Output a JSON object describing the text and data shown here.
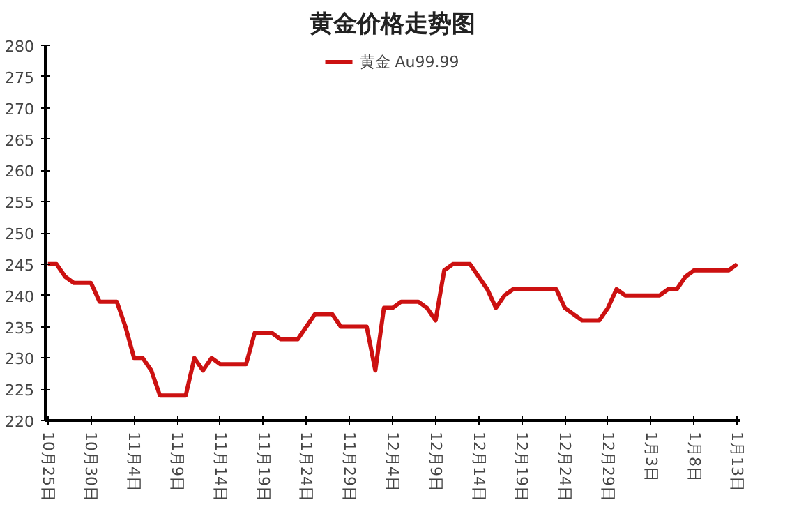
{
  "chart_data": {
    "type": "line",
    "title": "黄金价格走势图",
    "categories": [
      "10月25日",
      null,
      null,
      null,
      null,
      "10月30日",
      null,
      null,
      null,
      null,
      "11月4日",
      null,
      null,
      null,
      null,
      "11月9日",
      null,
      null,
      null,
      null,
      "11月14日",
      null,
      null,
      null,
      null,
      "11月19日",
      null,
      null,
      null,
      null,
      "11月24日",
      null,
      null,
      null,
      null,
      "11月29日",
      null,
      null,
      null,
      null,
      "12月4日",
      null,
      null,
      null,
      null,
      "12月9日",
      null,
      null,
      null,
      null,
      "12月14日",
      null,
      null,
      null,
      null,
      "12月19日",
      null,
      null,
      null,
      null,
      "12月24日",
      null,
      null,
      null,
      null,
      "12月29日",
      null,
      null,
      null,
      null,
      "1月3日",
      null,
      null,
      null,
      null,
      "1月8日",
      null,
      null,
      null,
      null,
      "1月13日"
    ],
    "series": [
      {
        "name": "黄金 Au99.99",
        "color": "#cc1111",
        "values": [
          245,
          245,
          243,
          242,
          242,
          242,
          239,
          239,
          239,
          235,
          230,
          230,
          228,
          224,
          224,
          224,
          224,
          230,
          228,
          230,
          229,
          229,
          229,
          229,
          234,
          234,
          234,
          233,
          233,
          233,
          235,
          237,
          237,
          237,
          235,
          235,
          235,
          235,
          228,
          238,
          238,
          239,
          239,
          239,
          238,
          236,
          244,
          245,
          245,
          245,
          243,
          241,
          238,
          240,
          241,
          241,
          241,
          241,
          241,
          241,
          238,
          237,
          236,
          236,
          236,
          238,
          241,
          240,
          240,
          240,
          240,
          240,
          241,
          241,
          243,
          244,
          244,
          244,
          244,
          244,
          245
        ]
      }
    ],
    "ylim": [
      220,
      280
    ],
    "yticks": [
      220,
      225,
      230,
      235,
      240,
      245,
      250,
      255,
      260,
      265,
      270,
      275,
      280
    ],
    "grid": false,
    "legend": "top",
    "marker": "none",
    "line_style": "solid"
  }
}
